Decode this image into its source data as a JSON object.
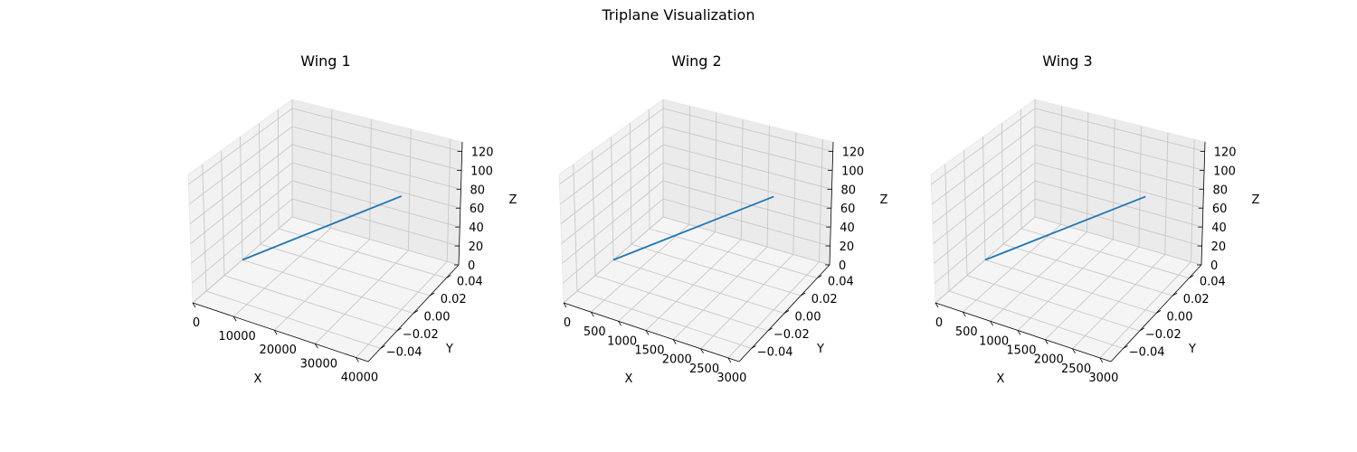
{
  "figure": {
    "title": "Triplane Visualization"
  },
  "chart_data": [
    {
      "type": "line3d",
      "title": "Wing 1",
      "xlabel": "X",
      "ylabel": "Y",
      "zlabel": "Z",
      "xlim": [
        0,
        43000
      ],
      "ylim": [
        -0.055,
        0.055
      ],
      "zlim": [
        0,
        130
      ],
      "xticks": [
        0,
        10000,
        20000,
        30000,
        40000
      ],
      "yticks": [
        -0.04,
        -0.02,
        0.0,
        0.02,
        0.04
      ],
      "zticks": [
        0,
        20,
        40,
        60,
        80,
        100,
        120
      ],
      "xtick_labels": [
        "0",
        "10000",
        "20000",
        "30000",
        "40000"
      ],
      "ytick_labels": [
        "−0.04",
        "−0.02",
        "0.00",
        "0.02",
        "0.04"
      ],
      "ztick_labels": [
        "0",
        "20",
        "40",
        "60",
        "80",
        "100",
        "120"
      ],
      "grid": true,
      "series": [
        {
          "color": "#1f77b4",
          "points": [
            [
              0,
              0,
              0
            ],
            [
              40000,
              0,
              120
            ]
          ]
        }
      ]
    },
    {
      "type": "line3d",
      "title": "Wing 2",
      "xlabel": "X",
      "ylabel": "Y",
      "zlabel": "Z",
      "xlim": [
        0,
        3200
      ],
      "ylim": [
        -0.055,
        0.055
      ],
      "zlim": [
        0,
        130
      ],
      "xticks": [
        0,
        500,
        1000,
        1500,
        2000,
        2500,
        3000
      ],
      "yticks": [
        -0.04,
        -0.02,
        0.0,
        0.02,
        0.04
      ],
      "zticks": [
        0,
        20,
        40,
        60,
        80,
        100,
        120
      ],
      "xtick_labels": [
        "0",
        "500",
        "1000",
        "1500",
        "2000",
        "2500",
        "3000"
      ],
      "ytick_labels": [
        "−0.04",
        "−0.02",
        "0.00",
        "0.02",
        "0.04"
      ],
      "ztick_labels": [
        "0",
        "20",
        "40",
        "60",
        "80",
        "100",
        "120"
      ],
      "grid": true,
      "series": [
        {
          "color": "#1f77b4",
          "points": [
            [
              0,
              0,
              0
            ],
            [
              3000,
              0,
              120
            ]
          ]
        }
      ]
    },
    {
      "type": "line3d",
      "title": "Wing 3",
      "xlabel": "X",
      "ylabel": "Y",
      "zlabel": "Z",
      "xlim": [
        0,
        3200
      ],
      "ylim": [
        -0.055,
        0.055
      ],
      "zlim": [
        0,
        130
      ],
      "xticks": [
        0,
        500,
        1000,
        1500,
        2000,
        2500,
        3000
      ],
      "yticks": [
        -0.04,
        -0.02,
        0.0,
        0.02,
        0.04
      ],
      "zticks": [
        0,
        20,
        40,
        60,
        80,
        100,
        120
      ],
      "xtick_labels": [
        "0",
        "500",
        "1000",
        "1500",
        "2000",
        "2500",
        "3000"
      ],
      "ytick_labels": [
        "−0.04",
        "−0.02",
        "0.00",
        "0.02",
        "0.04"
      ],
      "ztick_labels": [
        "0",
        "20",
        "40",
        "60",
        "80",
        "100",
        "120"
      ],
      "grid": true,
      "series": [
        {
          "color": "#1f77b4",
          "points": [
            [
              0,
              0,
              0
            ],
            [
              3000,
              0,
              120
            ]
          ]
        }
      ]
    }
  ]
}
